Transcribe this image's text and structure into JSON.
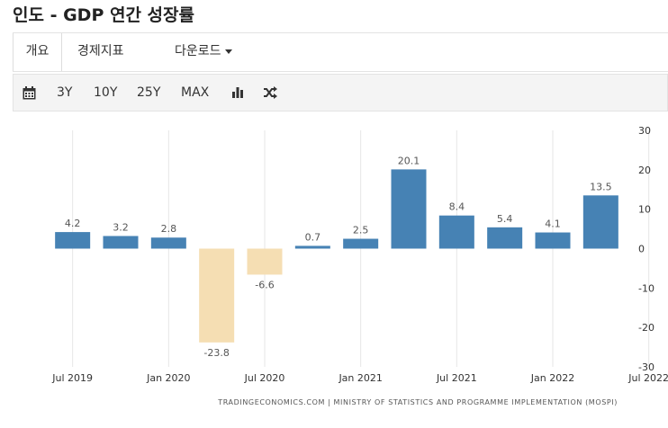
{
  "page": {
    "title": "인도 - GDP 연간 성장률"
  },
  "tabs": [
    {
      "label": "개요"
    },
    {
      "label": "경제지표"
    },
    {
      "label": "다운로드"
    }
  ],
  "toolbar": {
    "calendar_icon": "calendar-icon",
    "ranges": [
      "3Y",
      "10Y",
      "25Y",
      "MAX"
    ],
    "bar_chart_icon": "bar-chart-icon",
    "shuffle_icon": "shuffle-icon"
  },
  "chart_data": {
    "type": "bar",
    "categories": [
      "2019-Q3",
      "2019-Q4",
      "2020-Q1",
      "2020-Q2",
      "2020-Q3",
      "2020-Q4",
      "2021-Q1",
      "2021-Q2",
      "2021-Q3",
      "2021-Q4",
      "2022-Q1",
      "2022-Q2"
    ],
    "values": [
      4.2,
      3.2,
      2.8,
      -23.8,
      -6.6,
      0.7,
      2.5,
      20.1,
      8.4,
      5.4,
      4.1,
      13.5
    ],
    "x_tick_labels": [
      "Jul 2019",
      "Jan 2020",
      "Jul 2020",
      "Jan 2021",
      "Jul 2021",
      "Jan 2022",
      "Jul 2022"
    ],
    "y_ticks": [
      30,
      20,
      10,
      0,
      -10,
      -20,
      -30
    ],
    "ylim": [
      -30,
      30
    ],
    "grid": "vertical",
    "y_axis_side": "right",
    "colors": {
      "positive": "#4682b4",
      "negative": "#f5deb3",
      "label": "#555555",
      "grid": "#e6e6e6"
    }
  },
  "source": "TRADINGECONOMICS.COM  |  MINISTRY OF STATISTICS AND PROGRAMME IMPLEMENTATION (MOSPI)"
}
